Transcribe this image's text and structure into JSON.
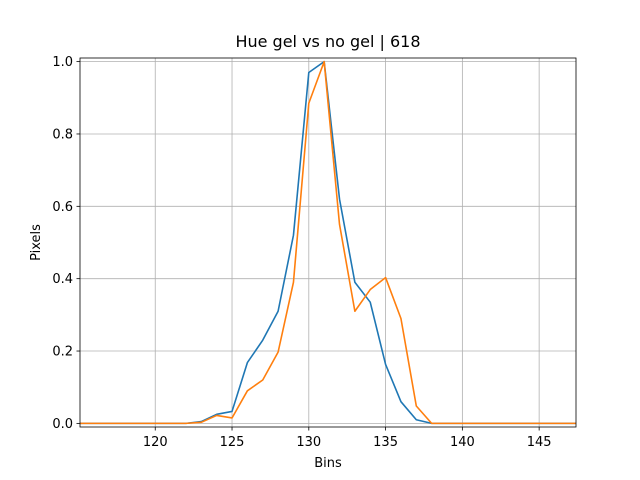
{
  "chart_data": {
    "type": "line",
    "title": "Hue gel vs no gel | 618",
    "xlabel": "Bins",
    "ylabel": "Pixels",
    "xlim": [
      115.1,
      147.4
    ],
    "ylim": [
      -0.01,
      1.01
    ],
    "x_ticks": [
      120,
      125,
      130,
      135,
      140,
      145
    ],
    "y_ticks": [
      0.0,
      0.2,
      0.4,
      0.6,
      0.8,
      1.0
    ],
    "x_tick_labels": [
      "120",
      "125",
      "130",
      "135",
      "140",
      "145"
    ],
    "y_tick_labels": [
      "0.0",
      "0.2",
      "0.4",
      "0.6",
      "0.8",
      "1.0"
    ],
    "grid": true,
    "x": [
      115,
      116,
      117,
      118,
      119,
      120,
      121,
      122,
      123,
      124,
      125,
      126,
      127,
      128,
      129,
      130,
      131,
      132,
      133,
      134,
      135,
      136,
      137,
      138,
      139,
      140,
      141,
      142,
      143,
      144,
      145,
      146,
      147,
      148
    ],
    "series": [
      {
        "color": "#1f77b4",
        "values": [
          0,
          0,
          0,
          0,
          0,
          0,
          0,
          0,
          0.005,
          0.025,
          0.033,
          0.168,
          0.23,
          0.31,
          0.52,
          0.97,
          1.0,
          0.62,
          0.39,
          0.335,
          0.163,
          0.06,
          0.01,
          0,
          0,
          0,
          0,
          0,
          0,
          0,
          0,
          0,
          0,
          0
        ]
      },
      {
        "color": "#ff7f0e",
        "values": [
          0,
          0,
          0,
          0,
          0,
          0,
          0,
          0,
          0.003,
          0.022,
          0.015,
          0.09,
          0.12,
          0.197,
          0.39,
          0.885,
          1.0,
          0.55,
          0.31,
          0.37,
          0.403,
          0.29,
          0.048,
          0,
          0,
          0,
          0,
          0,
          0,
          0,
          0,
          0,
          0,
          0
        ]
      }
    ]
  }
}
